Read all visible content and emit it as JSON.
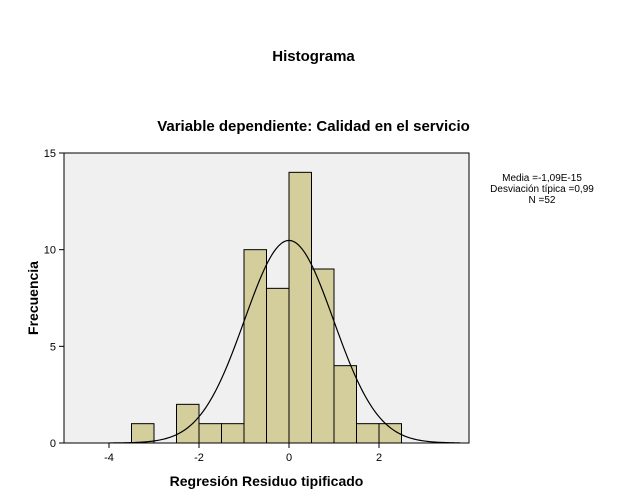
{
  "chart_data": {
    "type": "bar",
    "title": "Histograma",
    "subtitle": "Variable dependiente: Calidad en el servicio",
    "xlabel": "Regresión Residuo tipificado",
    "ylabel": "Frecuencia",
    "xlim": [
      -5,
      4
    ],
    "ylim": [
      0,
      15
    ],
    "xticks": [
      -4,
      -2,
      0,
      2
    ],
    "xtick_labels": [
      "-4",
      "-2",
      "0",
      "2"
    ],
    "yticks": [
      0,
      5,
      10,
      15
    ],
    "ytick_labels": [
      "0",
      "5",
      "10",
      "15"
    ],
    "bin_width": 0.5,
    "bins": [
      {
        "x0": -3.5,
        "x1": -3.0,
        "count": 1
      },
      {
        "x0": -2.5,
        "x1": -2.0,
        "count": 2
      },
      {
        "x0": -2.0,
        "x1": -1.5,
        "count": 1
      },
      {
        "x0": -1.5,
        "x1": -1.0,
        "count": 1
      },
      {
        "x0": -1.0,
        "x1": -0.5,
        "count": 10
      },
      {
        "x0": -0.5,
        "x1": 0.0,
        "count": 8
      },
      {
        "x0": 0.0,
        "x1": 0.5,
        "count": 14
      },
      {
        "x0": 0.5,
        "x1": 1.0,
        "count": 9
      },
      {
        "x0": 1.0,
        "x1": 1.5,
        "count": 4
      },
      {
        "x0": 1.5,
        "x1": 2.0,
        "count": 1
      },
      {
        "x0": 2.0,
        "x1": 2.5,
        "count": 1
      }
    ],
    "normal_curve": {
      "mean": 0,
      "sd": 0.99,
      "n": 52
    },
    "bar_color": "#d3ce9b",
    "bar_edge_color": "#000000",
    "plot_background": "#f0f0f0",
    "grid": false,
    "legend": "none"
  },
  "stats": {
    "mean": "Media =-1,09E-15",
    "sd": "Desviación típica =0,99",
    "n": "N =52"
  }
}
